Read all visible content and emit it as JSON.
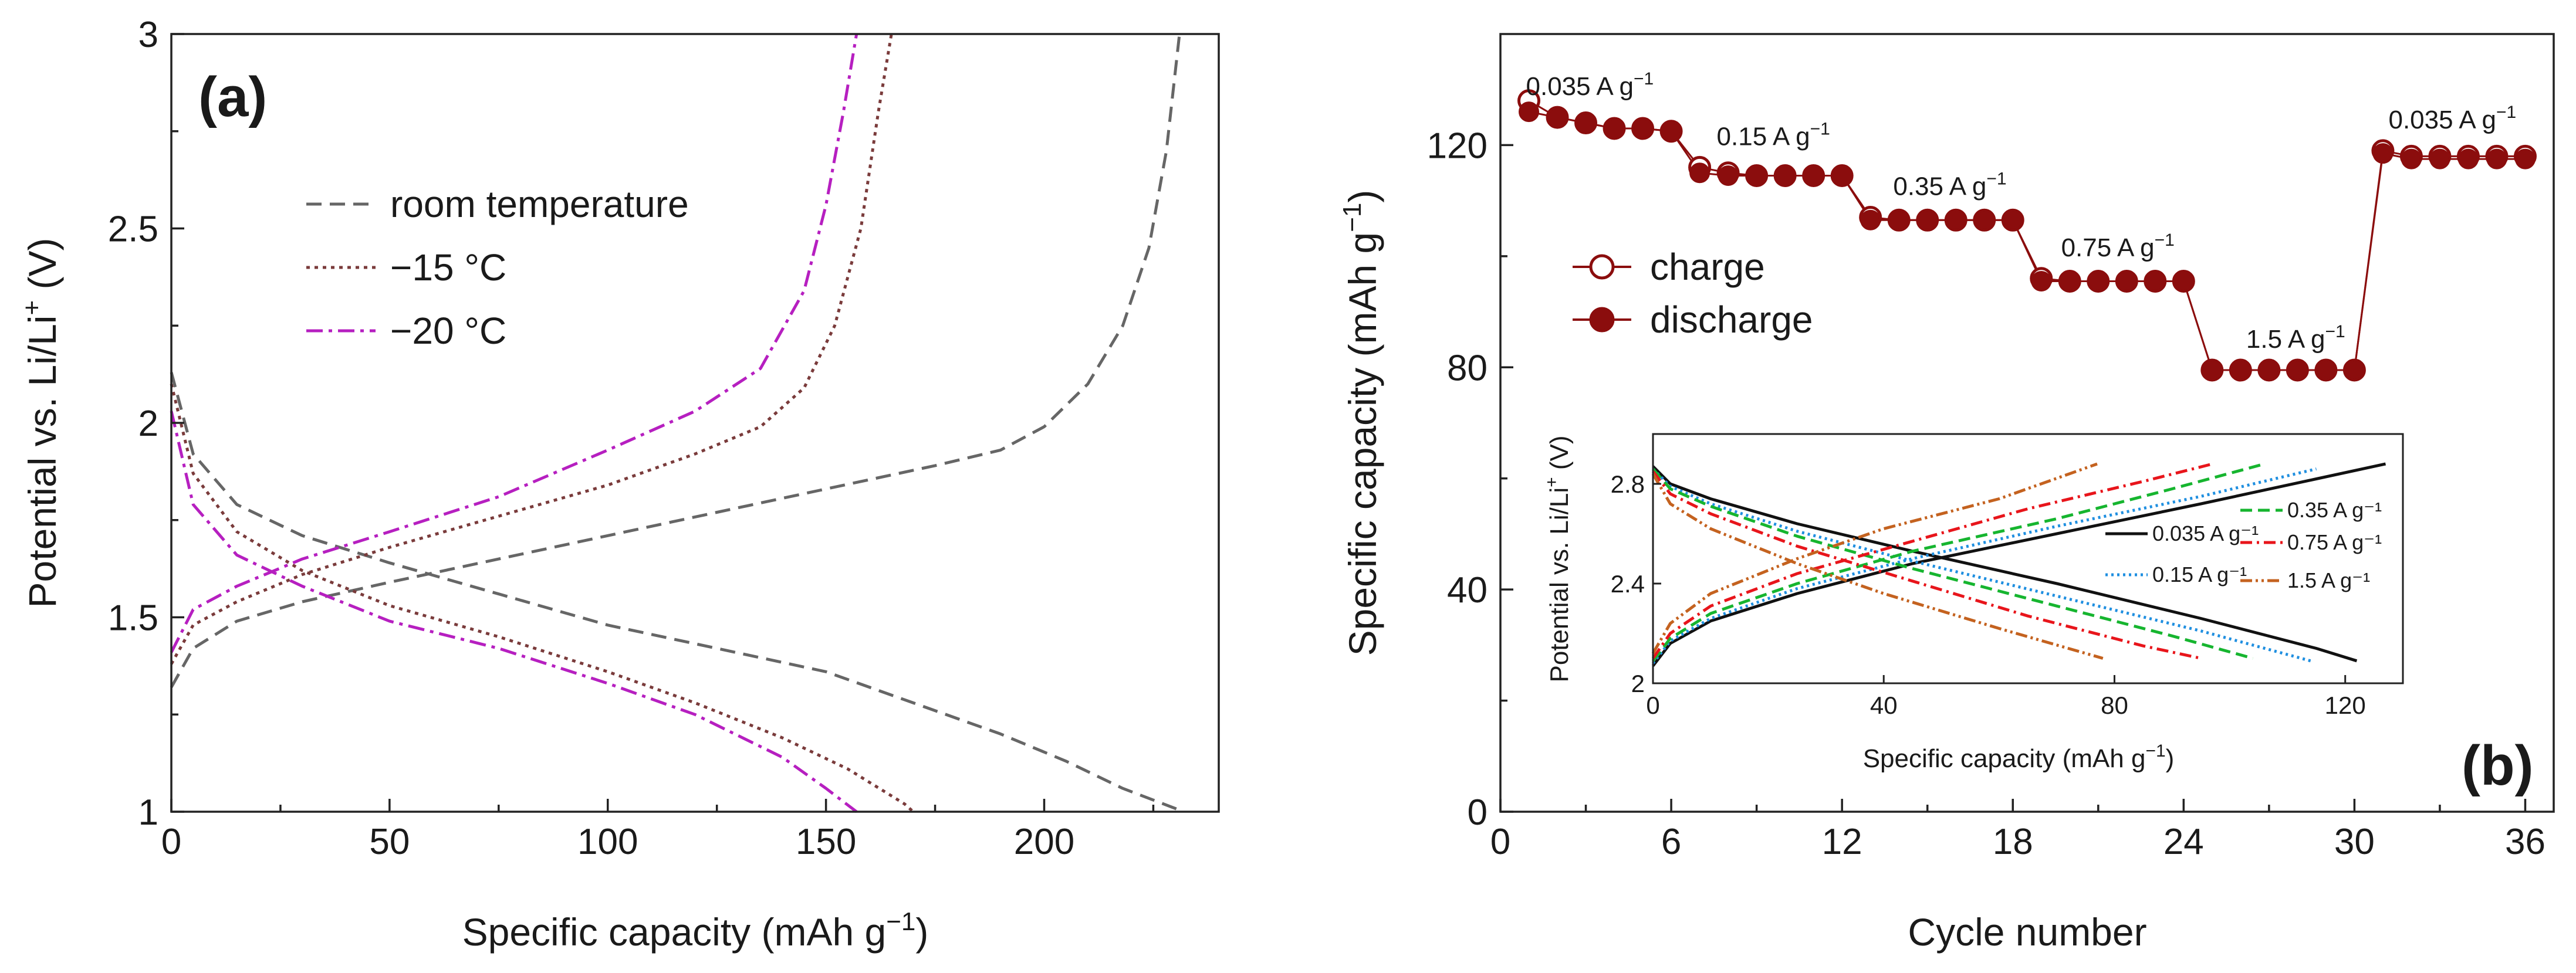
{
  "chart_data": [
    {
      "type": "line",
      "panel_label": "(a)",
      "xlabel_text": "Specific capacity (mAh g",
      "xlabel_sup": "−1",
      "xlabel_end": ")",
      "ylabel_text": "Potential vs. Li/Li",
      "ylabel_sup": "+",
      "ylabel_end": " (V)",
      "xlim": [
        0,
        240
      ],
      "ylim": [
        1,
        3
      ],
      "x_ticks": [
        "0",
        "50",
        "100",
        "150",
        "200"
      ],
      "y_ticks": [
        "1",
        "1.5",
        "2",
        "2.5",
        "3"
      ],
      "legend": [
        "room temperature",
        "−15 °C",
        "−20 °C"
      ],
      "series": [
        {
          "name": "room temperature",
          "color": "#666666",
          "dash": "dashed",
          "charge": [
            [
              0,
              1.32
            ],
            [
              5,
              1.42
            ],
            [
              15,
              1.49
            ],
            [
              30,
              1.54
            ],
            [
              50,
              1.59
            ],
            [
              75,
              1.65
            ],
            [
              100,
              1.71
            ],
            [
              125,
              1.77
            ],
            [
              150,
              1.83
            ],
            [
              175,
              1.89
            ],
            [
              190,
              1.93
            ],
            [
              200,
              1.99
            ],
            [
              210,
              2.1
            ],
            [
              218,
              2.25
            ],
            [
              224,
              2.45
            ],
            [
              228,
              2.7
            ],
            [
              231,
              3.0
            ]
          ],
          "discharge": [
            [
              0,
              2.13
            ],
            [
              5,
              1.92
            ],
            [
              15,
              1.79
            ],
            [
              30,
              1.71
            ],
            [
              50,
              1.64
            ],
            [
              75,
              1.56
            ],
            [
              100,
              1.48
            ],
            [
              125,
              1.42
            ],
            [
              150,
              1.36
            ],
            [
              170,
              1.28
            ],
            [
              190,
              1.2
            ],
            [
              205,
              1.13
            ],
            [
              218,
              1.06
            ],
            [
              232,
              1.0
            ]
          ]
        },
        {
          "name": "−15 °C",
          "color": "#7a3b3b",
          "dash": "dotted",
          "charge": [
            [
              0,
              1.38
            ],
            [
              5,
              1.48
            ],
            [
              15,
              1.54
            ],
            [
              30,
              1.61
            ],
            [
              50,
              1.68
            ],
            [
              75,
              1.76
            ],
            [
              100,
              1.84
            ],
            [
              120,
              1.92
            ],
            [
              135,
              1.99
            ],
            [
              145,
              2.09
            ],
            [
              152,
              2.25
            ],
            [
              158,
              2.5
            ],
            [
              162,
              2.8
            ],
            [
              165,
              3.0
            ]
          ],
          "discharge": [
            [
              0,
              2.1
            ],
            [
              5,
              1.87
            ],
            [
              15,
              1.72
            ],
            [
              30,
              1.62
            ],
            [
              50,
              1.53
            ],
            [
              75,
              1.45
            ],
            [
              100,
              1.36
            ],
            [
              120,
              1.28
            ],
            [
              140,
              1.19
            ],
            [
              155,
              1.11
            ],
            [
              168,
              1.02
            ],
            [
              170,
              1.0
            ]
          ]
        },
        {
          "name": "−20 °C",
          "color": "#b61fc0",
          "dash": "dashdot",
          "charge": [
            [
              0,
              1.41
            ],
            [
              5,
              1.52
            ],
            [
              15,
              1.58
            ],
            [
              30,
              1.65
            ],
            [
              50,
              1.72
            ],
            [
              75,
              1.81
            ],
            [
              100,
              1.93
            ],
            [
              120,
              2.03
            ],
            [
              135,
              2.14
            ],
            [
              145,
              2.34
            ],
            [
              150,
              2.56
            ],
            [
              154,
              2.8
            ],
            [
              157,
              3.0
            ]
          ],
          "discharge": [
            [
              0,
              2.03
            ],
            [
              5,
              1.79
            ],
            [
              15,
              1.66
            ],
            [
              30,
              1.58
            ],
            [
              50,
              1.49
            ],
            [
              75,
              1.42
            ],
            [
              100,
              1.33
            ],
            [
              120,
              1.25
            ],
            [
              140,
              1.14
            ],
            [
              150,
              1.06
            ],
            [
              157,
              1.0
            ]
          ]
        }
      ]
    },
    {
      "type": "scatter",
      "panel_label": "(b)",
      "xlabel": "Cycle number",
      "ylabel_text": "Specific capacity (mAh g",
      "ylabel_sup": "−1",
      "ylabel_end": ")",
      "xlim": [
        0,
        37
      ],
      "ylim": [
        0,
        140
      ],
      "x_ticks": [
        "0",
        "6",
        "12",
        "18",
        "24",
        "30",
        "36"
      ],
      "y_ticks": [
        "0",
        "40",
        "80",
        "120"
      ],
      "legend": [
        "charge",
        "discharge"
      ],
      "color": "#8b0d0d",
      "cycles": [
        1,
        2,
        3,
        4,
        5,
        6,
        7,
        8,
        9,
        10,
        11,
        12,
        13,
        14,
        15,
        16,
        17,
        18,
        19,
        20,
        21,
        22,
        23,
        24,
        25,
        26,
        27,
        28,
        29,
        30,
        31,
        32,
        33,
        34,
        35,
        36
      ],
      "charge": [
        128,
        125,
        124,
        123,
        123,
        122.5,
        116,
        115,
        114.5,
        114.5,
        114.5,
        114.5,
        107,
        106.5,
        106.5,
        106.5,
        106.5,
        106.5,
        96,
        95.5,
        95.5,
        95.5,
        95.5,
        95.5,
        79.5,
        79.5,
        79.5,
        79.5,
        79.5,
        79.5,
        119,
        118,
        118,
        118,
        118,
        118
      ],
      "discharge": [
        126,
        125,
        124,
        123,
        123,
        122.5,
        115,
        114.5,
        114.5,
        114.5,
        114.5,
        114.5,
        106.5,
        106.5,
        106.5,
        106.5,
        106.5,
        106.5,
        95.5,
        95.5,
        95.5,
        95.5,
        95.5,
        95.5,
        79.5,
        79.5,
        79.5,
        79.5,
        79.5,
        79.5,
        118.5,
        117.5,
        117.5,
        117.5,
        117.5,
        117.5
      ],
      "annotations": [
        {
          "text": "0.035 A g",
          "sup": "−1",
          "cycle": 1,
          "value": 129
        },
        {
          "text": "0.15 A g",
          "sup": "−1",
          "cycle": 7.7,
          "value": 120
        },
        {
          "text": "0.35 A g",
          "sup": "−1",
          "cycle": 13.9,
          "value": 111
        },
        {
          "text": "0.75 A g",
          "sup": "−1",
          "cycle": 19.8,
          "value": 100
        },
        {
          "text": "1.5 A g",
          "sup": "−1",
          "cycle": 26.3,
          "value": 83.5
        },
        {
          "text": "0.035 A g",
          "sup": "−1",
          "cycle": 31.3,
          "value": 123
        }
      ],
      "inset": {
        "type": "line",
        "xlabel_text": "Specific capacity (mAh g",
        "xlabel_sup": "−1",
        "xlabel_end": ")",
        "ylabel_text": "Potential vs. Li/Li",
        "ylabel_sup": "+",
        "ylabel_end": " (V)",
        "xlim": [
          0,
          130
        ],
        "ylim": [
          2,
          3
        ],
        "x_ticks": [
          "0",
          "40",
          "80",
          "120"
        ],
        "y_ticks": [
          "2",
          "2.4",
          "2.8"
        ],
        "legend": [
          "0.035 A g⁻¹",
          "0.15 A g⁻¹",
          "0.35 A g⁻¹",
          "0.75 A g⁻¹",
          "1.5 A g⁻¹"
        ],
        "series": [
          {
            "name": "0.035 A g⁻¹",
            "color": "#111111",
            "dash": "solid",
            "charge": [
              [
                0,
                2.07
              ],
              [
                3,
                2.16
              ],
              [
                10,
                2.25
              ],
              [
                25,
                2.36
              ],
              [
                45,
                2.48
              ],
              [
                70,
                2.6
              ],
              [
                95,
                2.72
              ],
              [
                115,
                2.82
              ],
              [
                127,
                2.88
              ]
            ],
            "discharge": [
              [
                0,
                2.87
              ],
              [
                3,
                2.8
              ],
              [
                10,
                2.74
              ],
              [
                25,
                2.64
              ],
              [
                45,
                2.53
              ],
              [
                70,
                2.4
              ],
              [
                95,
                2.26
              ],
              [
                115,
                2.14
              ],
              [
                122,
                2.09
              ]
            ]
          },
          {
            "name": "0.15 A g⁻¹",
            "color": "#1f8fe0",
            "dash": "dotted",
            "charge": [
              [
                0,
                2.08
              ],
              [
                3,
                2.17
              ],
              [
                10,
                2.26
              ],
              [
                25,
                2.38
              ],
              [
                45,
                2.5
              ],
              [
                70,
                2.63
              ],
              [
                95,
                2.75
              ],
              [
                115,
                2.86
              ]
            ],
            "discharge": [
              [
                0,
                2.86
              ],
              [
                3,
                2.79
              ],
              [
                10,
                2.72
              ],
              [
                25,
                2.61
              ],
              [
                45,
                2.49
              ],
              [
                70,
                2.35
              ],
              [
                95,
                2.21
              ],
              [
                114,
                2.09
              ]
            ]
          },
          {
            "name": "0.35 A g⁻¹",
            "color": "#16b52f",
            "dash": "dashed",
            "charge": [
              [
                0,
                2.09
              ],
              [
                3,
                2.18
              ],
              [
                10,
                2.28
              ],
              [
                25,
                2.4
              ],
              [
                45,
                2.53
              ],
              [
                70,
                2.66
              ],
              [
                90,
                2.78
              ],
              [
                106,
                2.88
              ]
            ],
            "discharge": [
              [
                0,
                2.86
              ],
              [
                3,
                2.78
              ],
              [
                10,
                2.71
              ],
              [
                25,
                2.59
              ],
              [
                45,
                2.46
              ],
              [
                70,
                2.31
              ],
              [
                90,
                2.19
              ],
              [
                104,
                2.1
              ]
            ]
          },
          {
            "name": "0.75 A g⁻¹",
            "color": "#e8151b",
            "dash": "dashdot",
            "charge": [
              [
                0,
                2.1
              ],
              [
                3,
                2.2
              ],
              [
                10,
                2.31
              ],
              [
                25,
                2.44
              ],
              [
                45,
                2.57
              ],
              [
                65,
                2.7
              ],
              [
                85,
                2.81
              ],
              [
                97,
                2.88
              ]
            ],
            "discharge": [
              [
                0,
                2.85
              ],
              [
                3,
                2.76
              ],
              [
                10,
                2.68
              ],
              [
                25,
                2.55
              ],
              [
                45,
                2.41
              ],
              [
                65,
                2.27
              ],
              [
                85,
                2.15
              ],
              [
                95,
                2.1
              ]
            ]
          },
          {
            "name": "1.5 A g⁻¹",
            "color": "#c4621f",
            "dash": "dashdotdot",
            "charge": [
              [
                0,
                2.12
              ],
              [
                3,
                2.24
              ],
              [
                10,
                2.36
              ],
              [
                25,
                2.5
              ],
              [
                40,
                2.62
              ],
              [
                60,
                2.74
              ],
              [
                77,
                2.88
              ]
            ],
            "discharge": [
              [
                0,
                2.84
              ],
              [
                3,
                2.72
              ],
              [
                10,
                2.62
              ],
              [
                25,
                2.48
              ],
              [
                40,
                2.36
              ],
              [
                60,
                2.22
              ],
              [
                78,
                2.1
              ]
            ]
          }
        ]
      }
    }
  ]
}
